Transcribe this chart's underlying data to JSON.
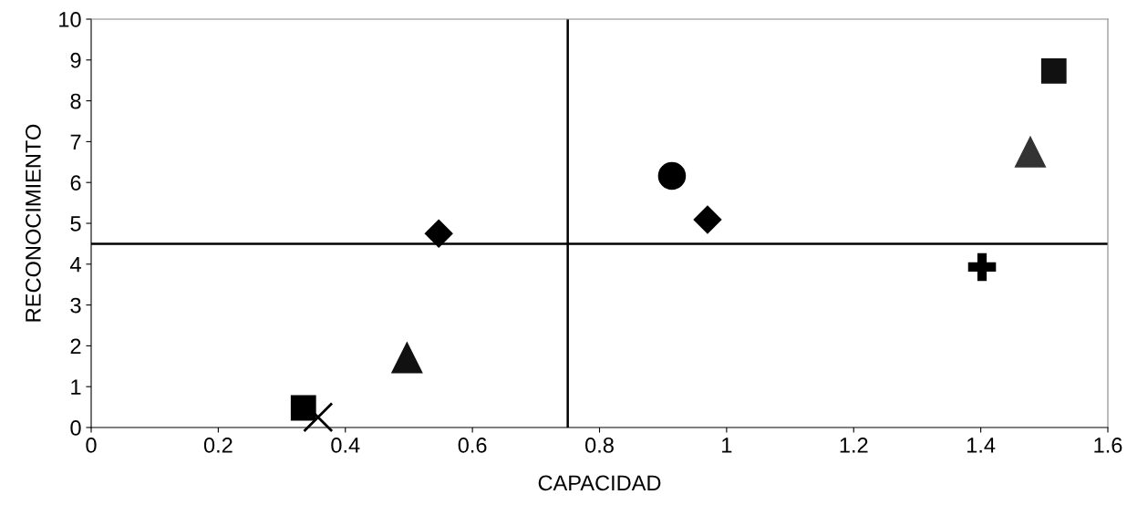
{
  "chart_data": {
    "type": "scatter",
    "xlabel": "CAPACIDAD",
    "ylabel": "RECONOCIMIENTO",
    "xlim": [
      0,
      1.6
    ],
    "xticks": [
      0,
      0.2,
      0.4,
      0.6,
      0.8,
      1,
      1.2,
      1.4,
      1.6
    ],
    "ylim": [
      0,
      10
    ],
    "yticks": [
      0,
      1,
      2,
      3,
      4,
      5,
      6,
      7,
      8,
      9,
      10
    ],
    "grid": false,
    "legend": false,
    "ref_lines": [
      {
        "axis": "x",
        "value": 0.75,
        "color": "#000000"
      },
      {
        "axis": "y",
        "value": 4.5,
        "color": "#000000"
      }
    ],
    "series": [
      {
        "x": [
          0.334
        ],
        "values": [
          0.48
        ],
        "marker": "square",
        "color": "#000000"
      },
      {
        "x": [
          0.357
        ],
        "values": [
          0.25
        ],
        "marker": "x",
        "color": "#000000"
      },
      {
        "x": [
          0.497
        ],
        "values": [
          1.7
        ],
        "marker": "triangle",
        "color": "#111111"
      },
      {
        "x": [
          0.547
        ],
        "values": [
          4.75
        ],
        "marker": "diamond",
        "color": "#000000"
      },
      {
        "x": [
          0.914
        ],
        "values": [
          6.16
        ],
        "marker": "circle",
        "color": "#000000"
      },
      {
        "x": [
          0.97
        ],
        "values": [
          5.09
        ],
        "marker": "diamond",
        "color": "#000000"
      },
      {
        "x": [
          1.402
        ],
        "values": [
          3.93
        ],
        "marker": "cross",
        "color": "#000000"
      },
      {
        "x": [
          1.478
        ],
        "values": [
          6.74
        ],
        "marker": "triangle",
        "color": "#333333"
      },
      {
        "x": [
          1.515
        ],
        "values": [
          8.73
        ],
        "marker": "square",
        "color": "#111111"
      }
    ]
  }
}
